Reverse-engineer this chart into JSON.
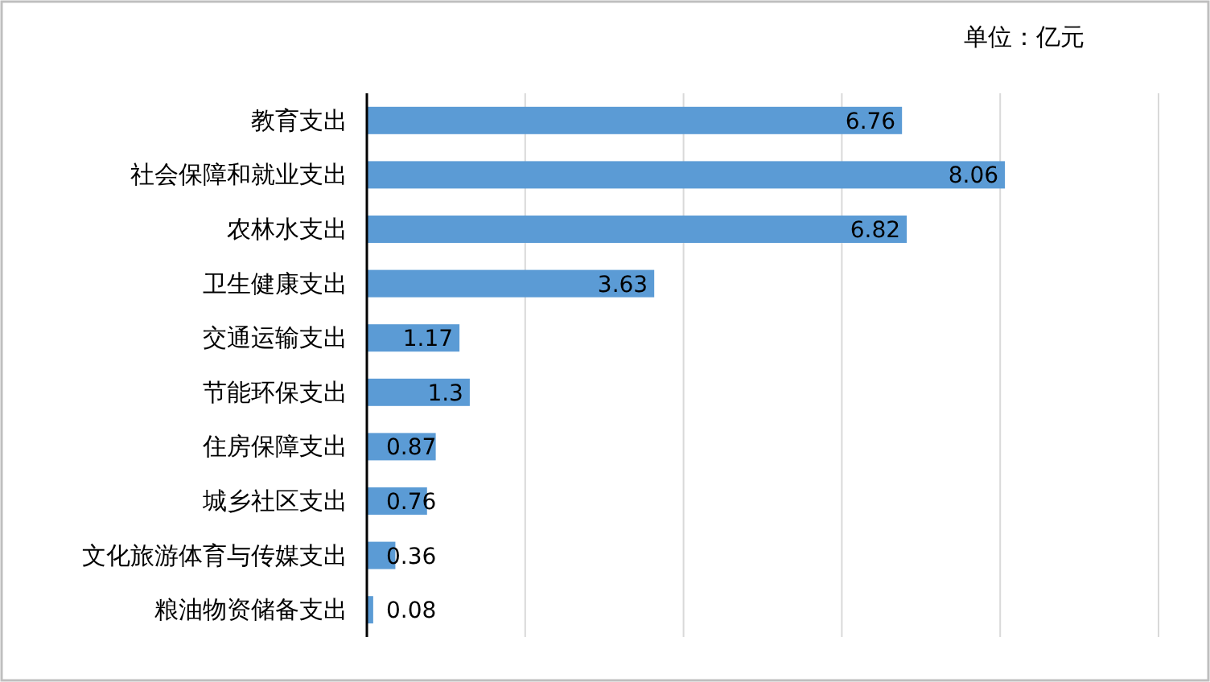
{
  "chart_data": {
    "type": "bar",
    "orientation": "horizontal",
    "categories": [
      "教育支出",
      "社会保障和就业支出",
      "农林水支出",
      "卫生健康支出",
      "交通运输支出",
      "节能环保支出",
      "住房保障支出",
      "城乡社区支出",
      "文化旅游体育与传媒支出",
      "粮油物资储备支出"
    ],
    "values": [
      6.76,
      8.06,
      6.82,
      3.63,
      1.17,
      1.3,
      0.87,
      0.76,
      0.36,
      0.08
    ],
    "color": "#5b9bd5",
    "xlim": [
      0,
      10
    ],
    "xticks": [
      {
        "value": 0,
        "label": null
      },
      {
        "value": 2,
        "label": null
      },
      {
        "value": 4,
        "label": null
      },
      {
        "value": 6,
        "label": null
      },
      {
        "value": 8,
        "label": null
      },
      {
        "value": 10,
        "label": null
      }
    ],
    "grid": "x",
    "tick_labels": "y",
    "data_labels": true,
    "annotations": [
      "单位：亿元"
    ]
  }
}
